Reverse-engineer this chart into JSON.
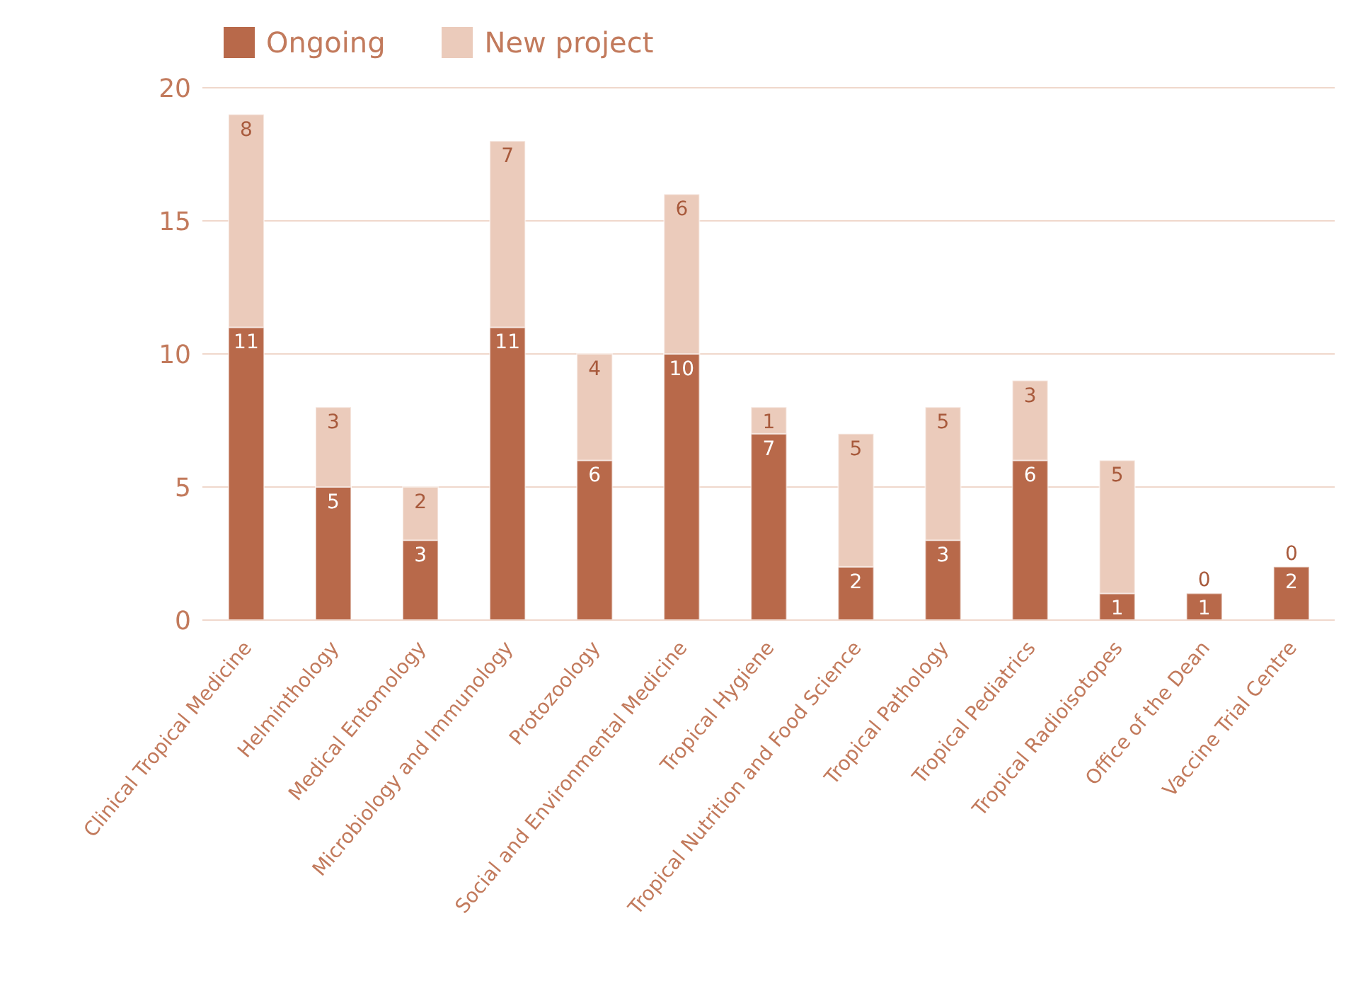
{
  "chart_data": {
    "type": "bar",
    "stacked": true,
    "categories": [
      "Clinical Tropical Medicine",
      "Helminthology",
      "Medical Entomology",
      "Microbiology and Immunology",
      "Protozoology",
      "Social and Environmental Medicine",
      "Tropical Hygiene",
      "Tropical Nutrition and Food Science",
      "Tropical Pathology",
      "Tropical Pediatrics",
      "Tropical Radioisotopes",
      "Office of the Dean",
      "Vaccine Trial Centre"
    ],
    "series": [
      {
        "name": "Ongoing",
        "color": "#b8694a",
        "values": [
          11,
          5,
          3,
          11,
          6,
          10,
          7,
          2,
          3,
          6,
          1,
          1,
          2
        ]
      },
      {
        "name": "New project",
        "color": "#ebcbbb",
        "values": [
          8,
          3,
          2,
          7,
          4,
          6,
          1,
          5,
          5,
          3,
          5,
          0,
          0
        ]
      }
    ],
    "ylim": [
      0,
      20
    ],
    "yticks": [
      0,
      5,
      10,
      15,
      20
    ],
    "grid": "y",
    "legend": "top left",
    "data_labels": true
  }
}
